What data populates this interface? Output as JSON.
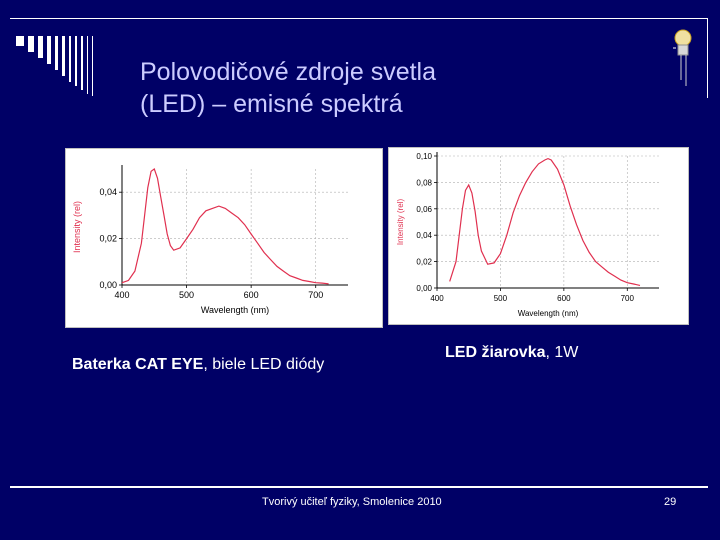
{
  "slide": {
    "title_line1": "Polovodičové zdroje svetla",
    "title_line2": "(LED) – emisné spektrá",
    "footer_text": "Tvorivý učiteľ fyziky, Smolenice 2010",
    "page_number": "29",
    "colors": {
      "background": "#000066",
      "title": "#ccccff",
      "curve": "#e0304f"
    }
  },
  "captions": {
    "left_bold": "Baterka CAT EYE",
    "left_rest": ", biele LED diódy",
    "right_bold": "LED žiarovka",
    "right_rest": ", 1W"
  },
  "chart_data": [
    {
      "type": "line",
      "xlabel": "Wavelength (nm)",
      "ylabel": "Intensity (rel)",
      "xlim": [
        400,
        750
      ],
      "ylim": [
        0,
        0.05
      ],
      "xticks": [
        "400",
        "500",
        "600",
        "700"
      ],
      "yticks": [
        "0,00",
        "0,02",
        "0,04"
      ],
      "series": [
        {
          "x": [
            400,
            410,
            420,
            430,
            435,
            440,
            445,
            450,
            455,
            460,
            465,
            470,
            475,
            480,
            490,
            500,
            510,
            520,
            530,
            540,
            550,
            560,
            570,
            580,
            590,
            600,
            610,
            620,
            630,
            640,
            650,
            660,
            670,
            680,
            690,
            700,
            710,
            720
          ],
          "y": [
            0.001,
            0.002,
            0.006,
            0.018,
            0.03,
            0.042,
            0.049,
            0.05,
            0.046,
            0.038,
            0.03,
            0.022,
            0.017,
            0.015,
            0.016,
            0.02,
            0.024,
            0.029,
            0.032,
            0.033,
            0.034,
            0.033,
            0.031,
            0.029,
            0.026,
            0.022,
            0.018,
            0.014,
            0.011,
            0.008,
            0.006,
            0.004,
            0.003,
            0.002,
            0.0015,
            0.001,
            0.0008,
            0.0005
          ]
        }
      ]
    },
    {
      "type": "line",
      "xlabel": "Wavelength (nm)",
      "ylabel": "Intensity (rel)",
      "xlim": [
        400,
        750
      ],
      "ylim": [
        0,
        0.1
      ],
      "xticks": [
        "400",
        "500",
        "600",
        "700"
      ],
      "yticks": [
        "0,00",
        "0,02",
        "0,04",
        "0,06",
        "0,08",
        "0,10"
      ],
      "series": [
        {
          "x": [
            420,
            430,
            440,
            445,
            450,
            455,
            460,
            465,
            470,
            480,
            490,
            500,
            510,
            520,
            530,
            540,
            550,
            560,
            570,
            575,
            580,
            590,
            600,
            610,
            620,
            630,
            640,
            650,
            660,
            670,
            680,
            690,
            700,
            710,
            720
          ],
          "y": [
            0.005,
            0.02,
            0.06,
            0.074,
            0.078,
            0.072,
            0.058,
            0.04,
            0.028,
            0.018,
            0.019,
            0.026,
            0.04,
            0.057,
            0.07,
            0.08,
            0.088,
            0.094,
            0.097,
            0.098,
            0.097,
            0.09,
            0.078,
            0.062,
            0.048,
            0.036,
            0.027,
            0.02,
            0.016,
            0.012,
            0.009,
            0.006,
            0.004,
            0.003,
            0.002
          ]
        }
      ]
    }
  ]
}
